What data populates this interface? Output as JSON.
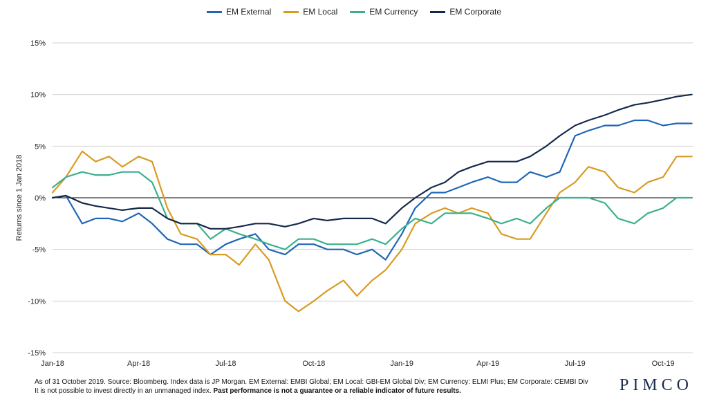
{
  "chart_data": {
    "type": "line",
    "ylabel": "Returns since 1 Jan 2018",
    "ylim": [
      -15,
      15
    ],
    "yticks": [
      15,
      10,
      5,
      0,
      -5,
      -10,
      -15
    ],
    "ytick_labels": [
      "15%",
      "10%",
      "5%",
      "0%",
      "-5%",
      "-10%",
      "-15%"
    ],
    "xlim": [
      "2018-01-01",
      "2019-11-01"
    ],
    "xticks": [
      "2018-01-01",
      "2018-04-01",
      "2018-07-01",
      "2018-10-01",
      "2019-01-01",
      "2019-04-01",
      "2019-07-01",
      "2019-10-01"
    ],
    "xtick_labels": [
      "Jan-18",
      "Apr-18",
      "Jul-18",
      "Oct-18",
      "Jan-19",
      "Apr-19",
      "Jul-19",
      "Oct-19"
    ],
    "grid": true,
    "legend_position": "top-center",
    "x": [
      "2018-01-01",
      "2018-01-15",
      "2018-02-01",
      "2018-02-15",
      "2018-03-01",
      "2018-03-15",
      "2018-04-01",
      "2018-04-15",
      "2018-05-01",
      "2018-05-15",
      "2018-06-01",
      "2018-06-15",
      "2018-07-01",
      "2018-07-15",
      "2018-08-01",
      "2018-08-15",
      "2018-09-01",
      "2018-09-15",
      "2018-10-01",
      "2018-10-15",
      "2018-11-01",
      "2018-11-15",
      "2018-12-01",
      "2018-12-15",
      "2019-01-01",
      "2019-01-15",
      "2019-02-01",
      "2019-02-15",
      "2019-03-01",
      "2019-03-15",
      "2019-04-01",
      "2019-04-15",
      "2019-05-01",
      "2019-05-15",
      "2019-06-01",
      "2019-06-15",
      "2019-07-01",
      "2019-07-15",
      "2019-08-01",
      "2019-08-15",
      "2019-09-01",
      "2019-09-15",
      "2019-10-01",
      "2019-10-15",
      "2019-10-31"
    ],
    "series": [
      {
        "name": "EM External",
        "color": "#2066b6",
        "values": [
          0.0,
          0.2,
          -2.5,
          -2.0,
          -2.0,
          -2.3,
          -1.5,
          -2.5,
          -4.0,
          -4.5,
          -4.5,
          -5.5,
          -4.5,
          -4.0,
          -3.5,
          -5.0,
          -5.5,
          -4.5,
          -4.5,
          -5.0,
          -5.0,
          -5.5,
          -5.0,
          -6.0,
          -3.5,
          -1.0,
          0.5,
          0.5,
          1.0,
          1.5,
          2.0,
          1.5,
          1.5,
          2.5,
          2.0,
          2.5,
          6.0,
          6.5,
          7.0,
          7.0,
          7.5,
          7.5,
          7.0,
          7.2,
          7.2
        ]
      },
      {
        "name": "EM Local",
        "color": "#d89b22",
        "values": [
          0.5,
          2.0,
          4.5,
          3.5,
          4.0,
          3.0,
          4.0,
          3.5,
          -1.0,
          -3.5,
          -4.0,
          -5.5,
          -5.5,
          -6.5,
          -4.5,
          -6.0,
          -10.0,
          -11.0,
          -10.0,
          -9.0,
          -8.0,
          -9.5,
          -8.0,
          -7.0,
          -5.0,
          -2.5,
          -1.5,
          -1.0,
          -1.5,
          -1.0,
          -1.5,
          -3.5,
          -4.0,
          -4.0,
          -1.5,
          0.5,
          1.5,
          3.0,
          2.5,
          1.0,
          0.5,
          1.5,
          2.0,
          4.0,
          4.0
        ]
      },
      {
        "name": "EM Currency",
        "color": "#3bb08f",
        "values": [
          1.0,
          2.0,
          2.5,
          2.2,
          2.2,
          2.5,
          2.5,
          1.5,
          -2.0,
          -2.5,
          -2.5,
          -4.0,
          -3.0,
          -3.5,
          -4.0,
          -4.5,
          -5.0,
          -4.0,
          -4.0,
          -4.5,
          -4.5,
          -4.5,
          -4.0,
          -4.5,
          -3.0,
          -2.0,
          -2.5,
          -1.5,
          -1.5,
          -1.5,
          -2.0,
          -2.5,
          -2.0,
          -2.5,
          -1.0,
          0.0,
          0.0,
          0.0,
          -0.5,
          -2.0,
          -2.5,
          -1.5,
          -1.0,
          0.0,
          0.0
        ]
      },
      {
        "name": "EM Corporate",
        "color": "#15294b",
        "values": [
          0.0,
          0.2,
          -0.5,
          -0.8,
          -1.0,
          -1.2,
          -1.0,
          -1.0,
          -2.0,
          -2.5,
          -2.5,
          -3.0,
          -3.0,
          -2.8,
          -2.5,
          -2.5,
          -2.8,
          -2.5,
          -2.0,
          -2.2,
          -2.0,
          -2.0,
          -2.0,
          -2.5,
          -1.0,
          0.0,
          1.0,
          1.5,
          2.5,
          3.0,
          3.5,
          3.5,
          3.5,
          4.0,
          5.0,
          6.0,
          7.0,
          7.5,
          8.0,
          8.5,
          9.0,
          9.2,
          9.5,
          9.8,
          10.0
        ]
      }
    ]
  },
  "footnote": {
    "line1": "As of 31 October 2019. Source: Bloomberg. Index data is JP Morgan. EM External: EMBI Global; EM Local: GBI-EM Global Div; EM Currency: ELMI Plus; EM Corporate: CEMBI Div",
    "line2_normal": "It is not possible to invest directly in an unmanaged index. ",
    "line2_bold": "Past performance is not a guarantee or a reliable indicator of future results."
  },
  "logo": "PIMCO"
}
